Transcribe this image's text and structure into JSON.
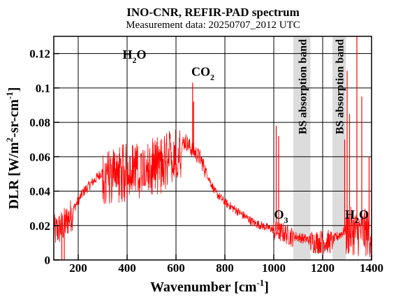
{
  "chart_data": {
    "type": "line",
    "title": "INO-CNR, REFIR-PAD spectrum",
    "subtitle": "Measurement data: 20250707_2012 UTC",
    "xlabel": "Wavenumber [cm",
    "xlabel_sup": "-1",
    "xlabel_close": "]",
    "ylabel": "DLR [W/m",
    "ylabel_sup1": "2",
    "ylabel_mid": "-sr-cm",
    "ylabel_sup2": "-1",
    "ylabel_close": "]",
    "xlim": [
      100,
      1400
    ],
    "ylim": [
      0,
      0.13
    ],
    "xticks": [
      200,
      400,
      600,
      800,
      1000,
      1200,
      1400
    ],
    "yticks": [
      {
        "v": 0,
        "label": "0"
      },
      {
        "v": 0.02,
        "label": "0.02"
      },
      {
        "v": 0.04,
        "label": "0.04"
      },
      {
        "v": 0.06,
        "label": "0.06"
      },
      {
        "v": 0.08,
        "label": "0.08"
      },
      {
        "v": 0.1,
        "label": "0.1"
      },
      {
        "v": 0.12,
        "label": "0.12"
      }
    ],
    "grid": true,
    "series": [
      {
        "color": "#ff0000",
        "envelope": [
          [
            100,
            0.018
          ],
          [
            140,
            0.022
          ],
          [
            180,
            0.03
          ],
          [
            220,
            0.04
          ],
          [
            260,
            0.046
          ],
          [
            300,
            0.052
          ],
          [
            340,
            0.056
          ],
          [
            380,
            0.057
          ],
          [
            420,
            0.058
          ],
          [
            460,
            0.058
          ],
          [
            500,
            0.06
          ],
          [
            540,
            0.062
          ],
          [
            580,
            0.066
          ],
          [
            620,
            0.068
          ],
          [
            640,
            0.07
          ],
          [
            660,
            0.066
          ],
          [
            680,
            0.063
          ],
          [
            700,
            0.06
          ],
          [
            720,
            0.053
          ],
          [
            740,
            0.046
          ],
          [
            760,
            0.04
          ],
          [
            800,
            0.034
          ],
          [
            840,
            0.03
          ],
          [
            880,
            0.026
          ],
          [
            920,
            0.022
          ],
          [
            960,
            0.02
          ],
          [
            1000,
            0.018
          ],
          [
            1040,
            0.017
          ],
          [
            1070,
            0.015
          ],
          [
            1150,
            0.012
          ],
          [
            1180,
            0.012
          ],
          [
            1220,
            0.012
          ],
          [
            1240,
            0.012
          ],
          [
            1295,
            0.018
          ],
          [
            1320,
            0.02
          ],
          [
            1340,
            0.018
          ],
          [
            1360,
            0.02
          ],
          [
            1380,
            0.018
          ],
          [
            1400,
            0.018
          ]
        ],
        "peaks": [
          [
            133,
            0.0
          ],
          [
            143,
            0.0
          ],
          [
            668,
            0.103
          ],
          [
            672,
            0.092
          ],
          [
            1010,
            0.078
          ],
          [
            1020,
            0.072
          ],
          [
            1290,
            0.07
          ],
          [
            1300,
            0.11
          ],
          [
            1310,
            0.085
          ],
          [
            1340,
            0.13
          ],
          [
            1360,
            0.095
          ],
          [
            1390,
            0.06
          ]
        ]
      }
    ],
    "bands": [
      {
        "x0": 1080,
        "x1": 1150,
        "label": "BS absorption band",
        "color": "#dcdcdc"
      },
      {
        "x0": 1240,
        "x1": 1295,
        "label": "BS absorption band",
        "color": "#dcdcdc"
      }
    ],
    "annotations": [
      {
        "text": "H",
        "sub": "2",
        "tail": "O",
        "x": 430,
        "y": 0.117
      },
      {
        "text": "CO",
        "sub": "2",
        "tail": "",
        "x": 710,
        "y": 0.107
      },
      {
        "text": "O",
        "sub": "3",
        "tail": "",
        "x": 1030,
        "y": 0.024
      },
      {
        "text": "H",
        "sub": "2",
        "tail": "O",
        "x": 1340,
        "y": 0.024
      }
    ]
  }
}
